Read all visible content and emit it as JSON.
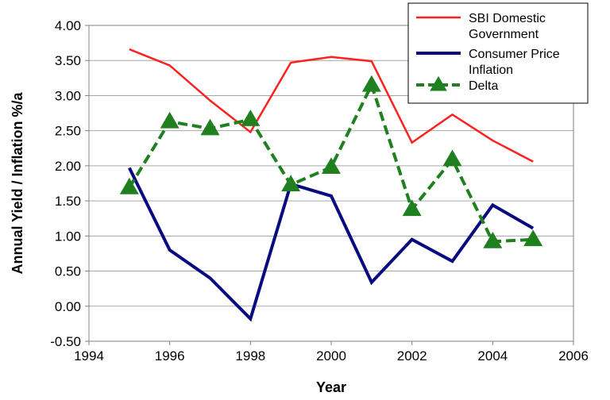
{
  "chart_data": {
    "type": "line",
    "title": "",
    "xlabel": "Year",
    "ylabel": "Annual Yield / Inflation %/a",
    "xlim": [
      1994,
      2006
    ],
    "ylim": [
      -0.5,
      4.0
    ],
    "x_ticks": [
      "1994",
      "1996",
      "1998",
      "2000",
      "2002",
      "2004",
      "2006"
    ],
    "y_ticks": [
      "-0.50",
      "0.00",
      "0.50",
      "1.00",
      "1.50",
      "2.00",
      "2.50",
      "3.00",
      "3.50",
      "4.00"
    ],
    "grid": "horizontal",
    "legend_position": "top-right",
    "x": [
      1995,
      1996,
      1997,
      1998,
      1999,
      2000,
      2001,
      2002,
      2003,
      2004,
      2005
    ],
    "series": [
      {
        "name": "SBI Domestic Government",
        "legend_lines": [
          "SBI Domestic",
          "Government"
        ],
        "color": "#ff2020",
        "style": "solid",
        "marker": "none",
        "values": [
          3.66,
          3.43,
          2.93,
          2.48,
          3.47,
          3.55,
          3.49,
          2.33,
          2.73,
          2.36,
          2.06
        ]
      },
      {
        "name": "Consumer Price Inflation",
        "legend_lines": [
          "Consumer Price",
          "Inflation"
        ],
        "color": "#0a0a80",
        "style": "solid",
        "marker": "none",
        "values": [
          1.97,
          0.8,
          0.4,
          -0.18,
          1.74,
          1.57,
          0.34,
          0.95,
          0.64,
          1.44,
          1.11
        ]
      },
      {
        "name": "Delta",
        "legend_lines": [
          "Delta"
        ],
        "color": "#208020",
        "style": "dashed",
        "marker": "triangle",
        "values": [
          1.69,
          2.63,
          2.53,
          2.66,
          1.73,
          1.98,
          3.15,
          1.38,
          2.09,
          0.92,
          0.95
        ]
      }
    ]
  }
}
